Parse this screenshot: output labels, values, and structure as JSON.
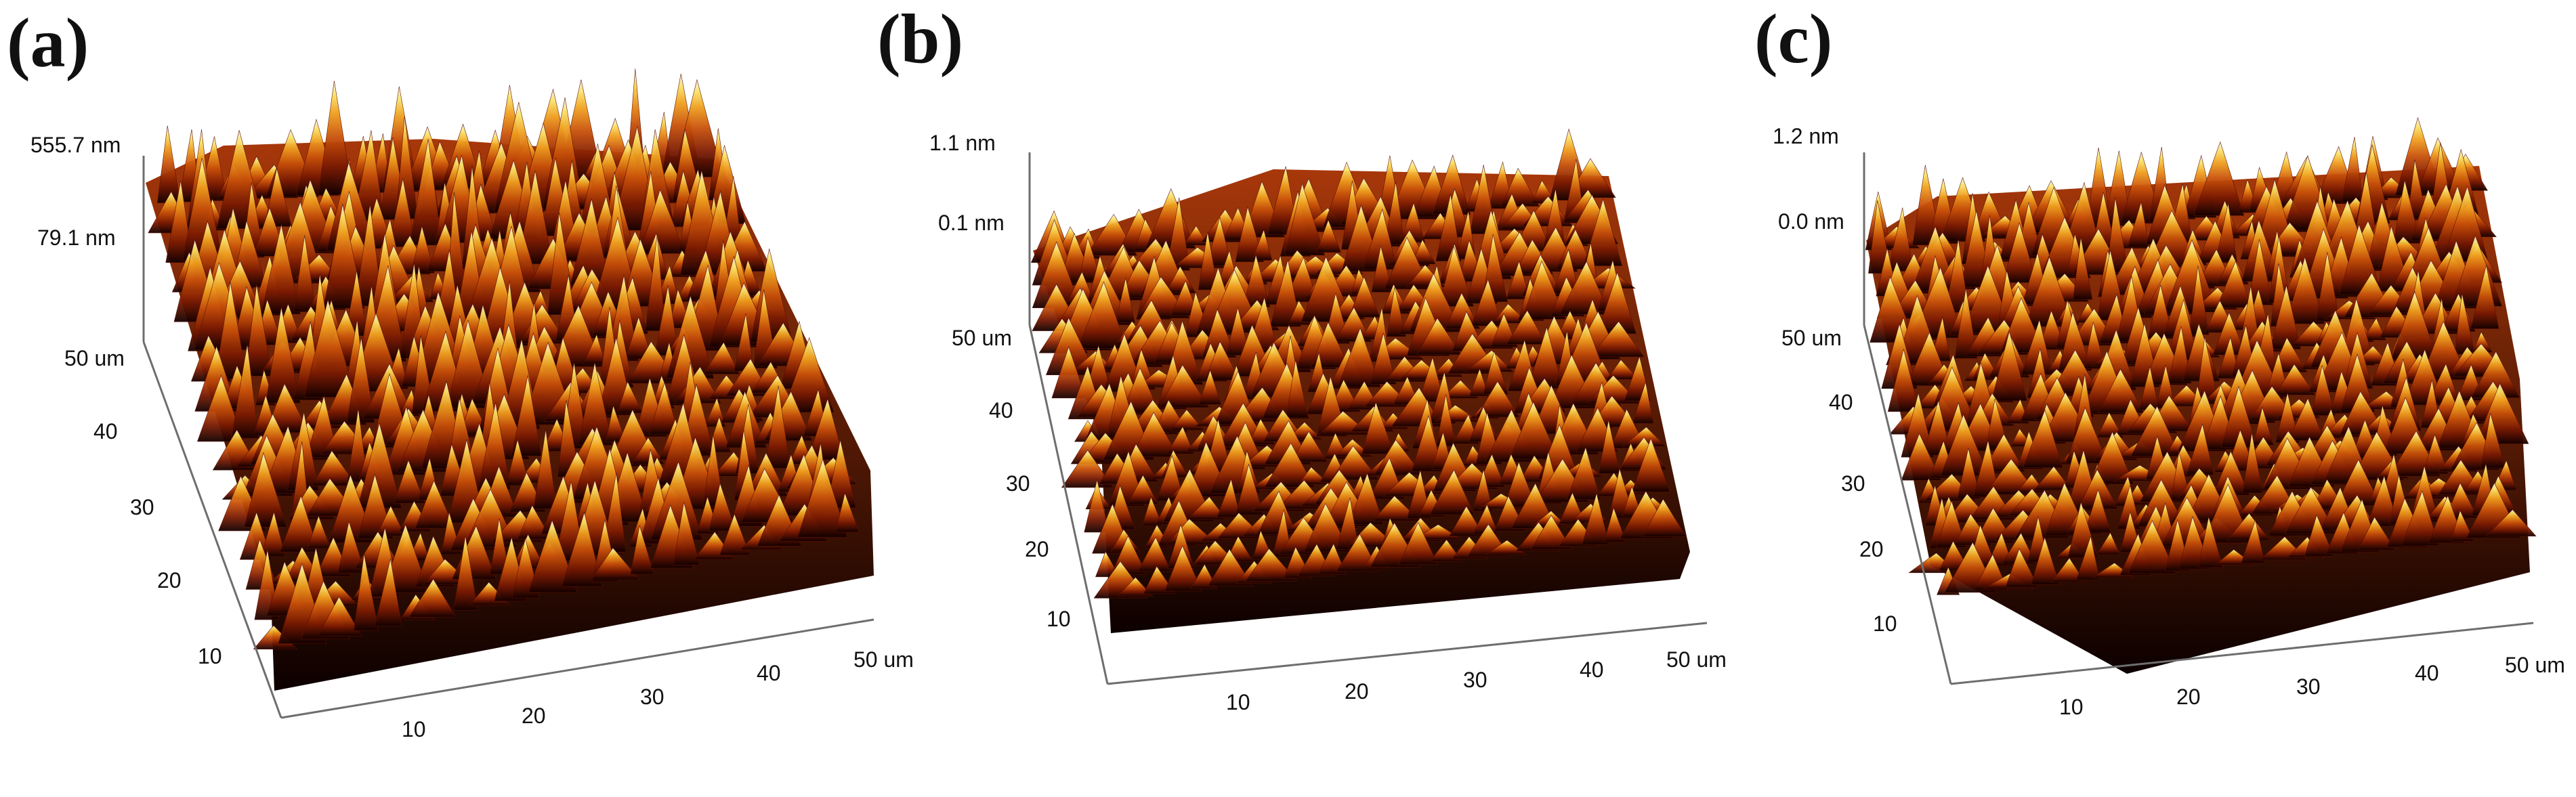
{
  "panels": [
    {
      "id": "a",
      "label": "(a)",
      "z_ticks": [
        "555.7 nm",
        "79.1 nm"
      ],
      "y_ticks": [
        "50 um",
        "40",
        "30",
        "20",
        "10"
      ],
      "x_ticks": [
        "10",
        "20",
        "30",
        "40",
        "50 um"
      ]
    },
    {
      "id": "b",
      "label": "(b)",
      "z_ticks": [
        "1.1 nm",
        "0.1 nm"
      ],
      "y_ticks": [
        "50 um",
        "40",
        "30",
        "20",
        "10"
      ],
      "x_ticks": [
        "10",
        "20",
        "30",
        "40",
        "50 um"
      ]
    },
    {
      "id": "c",
      "label": "(c)",
      "z_ticks": [
        "1.2 nm",
        "0.0 nm"
      ],
      "y_ticks": [
        "50 um",
        "40",
        "30",
        "20",
        "10"
      ],
      "x_ticks": [
        "10",
        "20",
        "30",
        "40",
        "50 um"
      ]
    }
  ],
  "colors": {
    "surface_dark": "#1a0000",
    "surface_mid": "#b5370a",
    "surface_orange": "#e8820c",
    "surface_yellow": "#f9d63a",
    "surface_highlight": "#f6eef0"
  }
}
